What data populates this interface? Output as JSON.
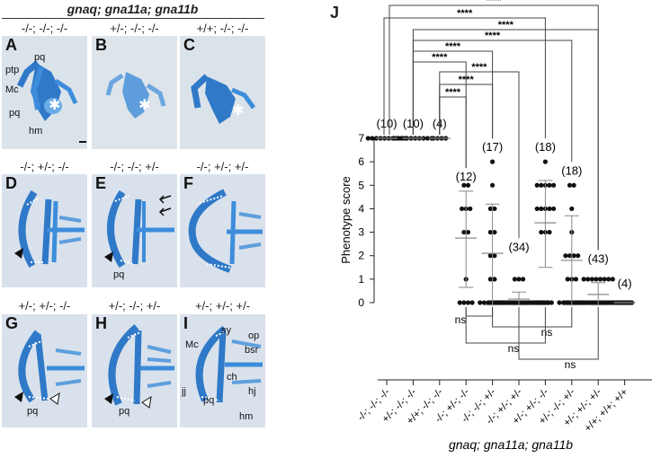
{
  "header": "gnaq; gna11a; gna11b",
  "rows": [
    {
      "labels": [
        "-/-; -/-; -/-",
        "+/-; -/-; -/-",
        "+/+; -/-; -/-"
      ]
    },
    {
      "labels": [
        "-/-; +/-; -/-",
        "-/-; -/-; +/-",
        "-/-; +/-; +/-"
      ]
    },
    {
      "labels": [
        "+/-; +/-; -/-",
        "+/-; -/-; +/-",
        "+/-; +/-; +/-"
      ]
    }
  ],
  "panels": [
    "A",
    "B",
    "C",
    "D",
    "E",
    "F",
    "G",
    "H",
    "I"
  ],
  "anatomy": {
    "A": [
      "ptp",
      "pq",
      "Mc",
      "pq",
      "hm"
    ],
    "E": [
      "pq"
    ],
    "G": [
      "pq"
    ],
    "H": [
      "pq"
    ],
    "I": [
      "Mc",
      "sy",
      "op",
      "bsr",
      "ch",
      "jj",
      "pq",
      "hj",
      "hm"
    ]
  },
  "chart_data": {
    "type": "scatter",
    "panel_label": "J",
    "ylabel": "Phenotype score",
    "xlabel": "gnaq; gna11a; gna11b",
    "ylim": [
      0,
      7
    ],
    "yticks": [
      0,
      1,
      2,
      3,
      4,
      5,
      6,
      7
    ],
    "categories": [
      "-/-; -/-; -/-",
      "+/-; -/-; -/-",
      "+/+; -/-; -/-",
      "-/-; +/-; -/-",
      "-/-; -/-; +/-",
      "-/-; +/-; +/-",
      "+/-; +/-; -/-",
      "+/-; -/-; +/-",
      "+/-; +/-; +/-",
      "+/+; +/+; +/+"
    ],
    "counts": [
      "(10)",
      "(10)",
      "(4)",
      "(12)",
      "(17)",
      "(34)",
      "(18)",
      "(18)",
      "(43)",
      "(4)"
    ],
    "means": [
      7,
      7,
      7,
      2.75,
      2.1,
      0.15,
      3.4,
      1.8,
      0.35,
      0
    ],
    "sds": [
      0,
      0,
      0,
      2.0,
      2.1,
      0.3,
      1.8,
      1.9,
      0.5,
      0
    ],
    "distributions": [
      [
        [
          7,
          10
        ]
      ],
      [
        [
          7,
          10
        ]
      ],
      [
        [
          7,
          4
        ]
      ],
      [
        [
          0,
          4
        ],
        [
          1,
          1
        ],
        [
          3,
          2
        ],
        [
          4,
          3
        ],
        [
          5,
          2
        ]
      ],
      [
        [
          0,
          7
        ],
        [
          1,
          2
        ],
        [
          2,
          2
        ],
        [
          3,
          2
        ],
        [
          4,
          2
        ],
        [
          5,
          1
        ],
        [
          6,
          1
        ]
      ],
      [
        [
          0,
          31
        ],
        [
          1,
          3
        ]
      ],
      [
        [
          0,
          4
        ],
        [
          3,
          3
        ],
        [
          4,
          5
        ],
        [
          5,
          5
        ],
        [
          6,
          1
        ]
      ],
      [
        [
          0,
          7
        ],
        [
          1,
          3
        ],
        [
          2,
          4
        ],
        [
          3,
          1
        ],
        [
          4,
          1
        ],
        [
          5,
          2
        ]
      ],
      [
        [
          0,
          35
        ],
        [
          1,
          8
        ]
      ],
      [
        [
          0,
          4
        ]
      ]
    ],
    "significance_top": [
      "****",
      "****",
      "****",
      "****",
      "****",
      "****",
      "****",
      "****",
      "****"
    ],
    "significance_bottom": [
      "ns",
      "ns",
      "ns",
      "ns"
    ]
  }
}
